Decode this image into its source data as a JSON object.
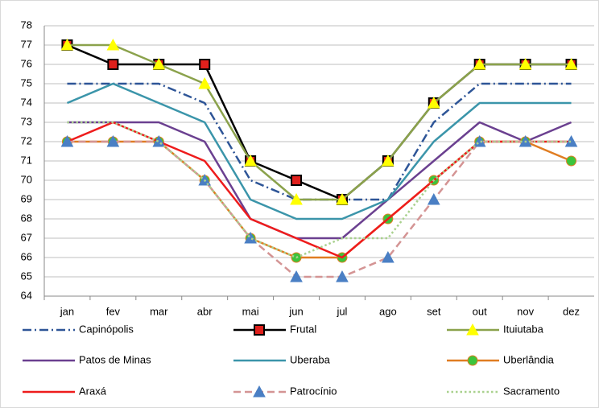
{
  "chart_data": {
    "type": "line",
    "categories": [
      "jan",
      "fev",
      "mar",
      "abr",
      "mai",
      "jun",
      "jul",
      "ago",
      "set",
      "out",
      "nov",
      "dez"
    ],
    "ylim": [
      64,
      78
    ],
    "yticks": [
      64,
      65,
      66,
      67,
      68,
      69,
      70,
      71,
      72,
      73,
      74,
      75,
      76,
      77,
      78
    ],
    "grid": true,
    "legend": "bottom",
    "series": [
      {
        "name": "Capinópolis",
        "color": "#2e5597",
        "dash": "dashdot",
        "values": [
          75,
          75,
          75,
          74,
          70,
          69,
          69,
          69,
          73,
          75,
          75,
          75
        ]
      },
      {
        "name": "Frutal",
        "color": "#000000",
        "marker": "square",
        "marker_color": "#e0201c",
        "values": [
          77,
          76,
          76,
          76,
          71,
          70,
          69,
          71,
          74,
          76,
          76,
          76
        ]
      },
      {
        "name": "Ituiutaba",
        "color": "#8ba24c",
        "marker": "triangle",
        "marker_color": "#ffff00",
        "values": [
          77,
          77,
          76,
          75,
          71,
          69,
          69,
          71,
          74,
          76,
          76,
          76
        ]
      },
      {
        "name": "Patos de Minas",
        "color": "#6b4090",
        "values": [
          73,
          73,
          73,
          72,
          68,
          67,
          67,
          69,
          71,
          73,
          72,
          73
        ]
      },
      {
        "name": "Uberaba",
        "color": "#3b95aa",
        "values": [
          74,
          75,
          74,
          73,
          69,
          68,
          68,
          69,
          72,
          74,
          74,
          74
        ]
      },
      {
        "name": "Uberlândia",
        "color": "#e07d22",
        "marker": "circle",
        "marker_color": "#3cc43c",
        "values": [
          72,
          72,
          72,
          70,
          67,
          66,
          66,
          68,
          70,
          72,
          72,
          71
        ]
      },
      {
        "name": "Araxá",
        "color": "#ee1c1c",
        "values": [
          72,
          73,
          72,
          71,
          68,
          67,
          66,
          68,
          70,
          72,
          72,
          72
        ]
      },
      {
        "name": "Patrocínio",
        "color": "#d49494",
        "dash": "dashed",
        "marker": "triangle",
        "marker_color": "#4a7fc4",
        "values": [
          72,
          72,
          72,
          70,
          67,
          65,
          65,
          66,
          69,
          72,
          72,
          72
        ]
      },
      {
        "name": "Sacramento",
        "color": "#a9d18e",
        "dash": "dotted",
        "values": [
          73,
          73,
          72,
          70,
          67,
          66,
          67,
          67,
          70,
          72,
          72,
          72
        ]
      }
    ]
  }
}
